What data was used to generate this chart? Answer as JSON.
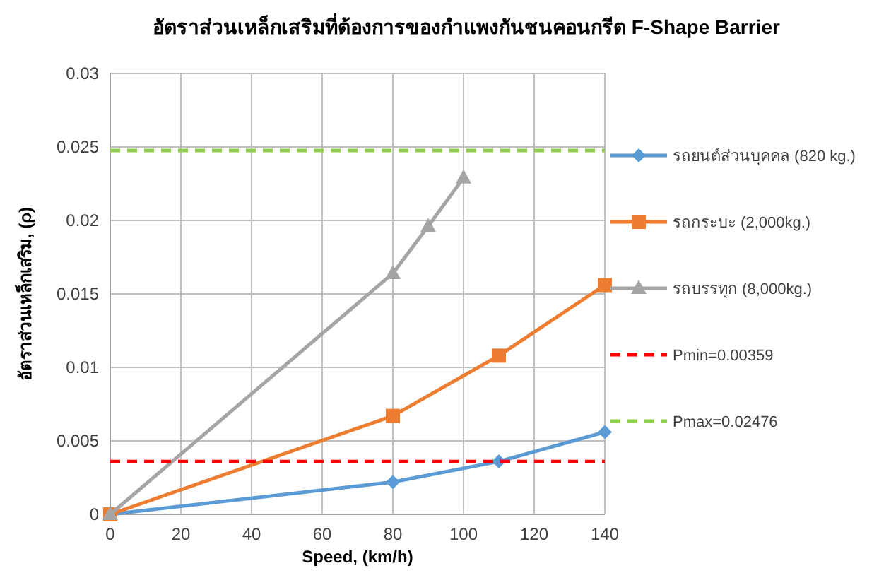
{
  "chart_data": {
    "type": "line",
    "title": "อัตราส่วนเหล็กเสริมที่ต้องการของกำแพงกันชนคอนกรีต  F-Shape Barrier",
    "xlabel": "Speed, (km/h)",
    "ylabel": "อัตราส่วนเหล็กเสริม, (ρ)",
    "xlim": [
      0,
      140
    ],
    "xticks": [
      0,
      20,
      40,
      60,
      80,
      100,
      120,
      140
    ],
    "ylim": [
      0,
      0.03
    ],
    "yticks": [
      0,
      0.005,
      0.01,
      0.015,
      0.02,
      0.025,
      0.03
    ],
    "grid": true,
    "legend": "right",
    "series": [
      {
        "name": "รถยนต์ส่วนบุคคล (820 kg.)",
        "color": "#5b9bd5",
        "marker": "diamond",
        "x": [
          0,
          80,
          110,
          140
        ],
        "values": [
          0,
          0.0022,
          0.0036,
          0.0056
        ]
      },
      {
        "name": "รถกระบะ (2,000kg.)",
        "color": "#ed7d31",
        "marker": "square",
        "x": [
          0,
          80,
          110,
          140
        ],
        "values": [
          0,
          0.0067,
          0.0108,
          0.0156
        ]
      },
      {
        "name": "รถบรรทุก (8,000kg.)",
        "color": "#a5a5a5",
        "marker": "triangle",
        "x": [
          0,
          80,
          90,
          100
        ],
        "values": [
          0,
          0.0164,
          0.0196,
          0.0229
        ]
      }
    ],
    "ref_lines": [
      {
        "axis": "y",
        "value": 0.00359,
        "label": "Pmin=0.00359",
        "color": "#ff0000",
        "line_style": "dashed"
      },
      {
        "axis": "y",
        "value": 0.02476,
        "label": "Pmax=0.02476",
        "color": "#92d050",
        "line_style": "dashed"
      }
    ]
  }
}
